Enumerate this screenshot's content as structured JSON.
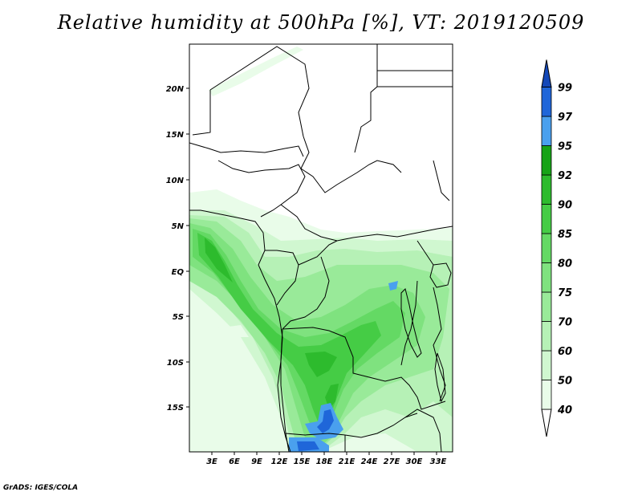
{
  "title": "Relative humidity at 500hPa [%], VT: 2019120509",
  "footer": "GrADS: IGES/COLA",
  "map": {
    "variable": "Relative humidity at 500hPa",
    "units": "%",
    "valid_time": "2019120509",
    "lon_labels": [
      "3E",
      "6E",
      "9E",
      "12E",
      "15E",
      "18E",
      "21E",
      "24E",
      "27E",
      "30E",
      "33E"
    ],
    "lat_labels": [
      "20N",
      "15N",
      "10N",
      "5N",
      "EQ",
      "5S",
      "10S",
      "15S"
    ]
  },
  "colorbar": {
    "levels": [
      "40",
      "50",
      "60",
      "70",
      "75",
      "80",
      "85",
      "90",
      "92",
      "95",
      "97",
      "99"
    ],
    "colors": [
      "#ffffff",
      "#e9fce9",
      "#d0f7d0",
      "#b6f1b6",
      "#99ea99",
      "#7fe27f",
      "#64d964",
      "#45cc45",
      "#2dbb2d",
      "#17a317",
      "#4aa0ee",
      "#1f66d9",
      "#1448b8"
    ]
  }
}
